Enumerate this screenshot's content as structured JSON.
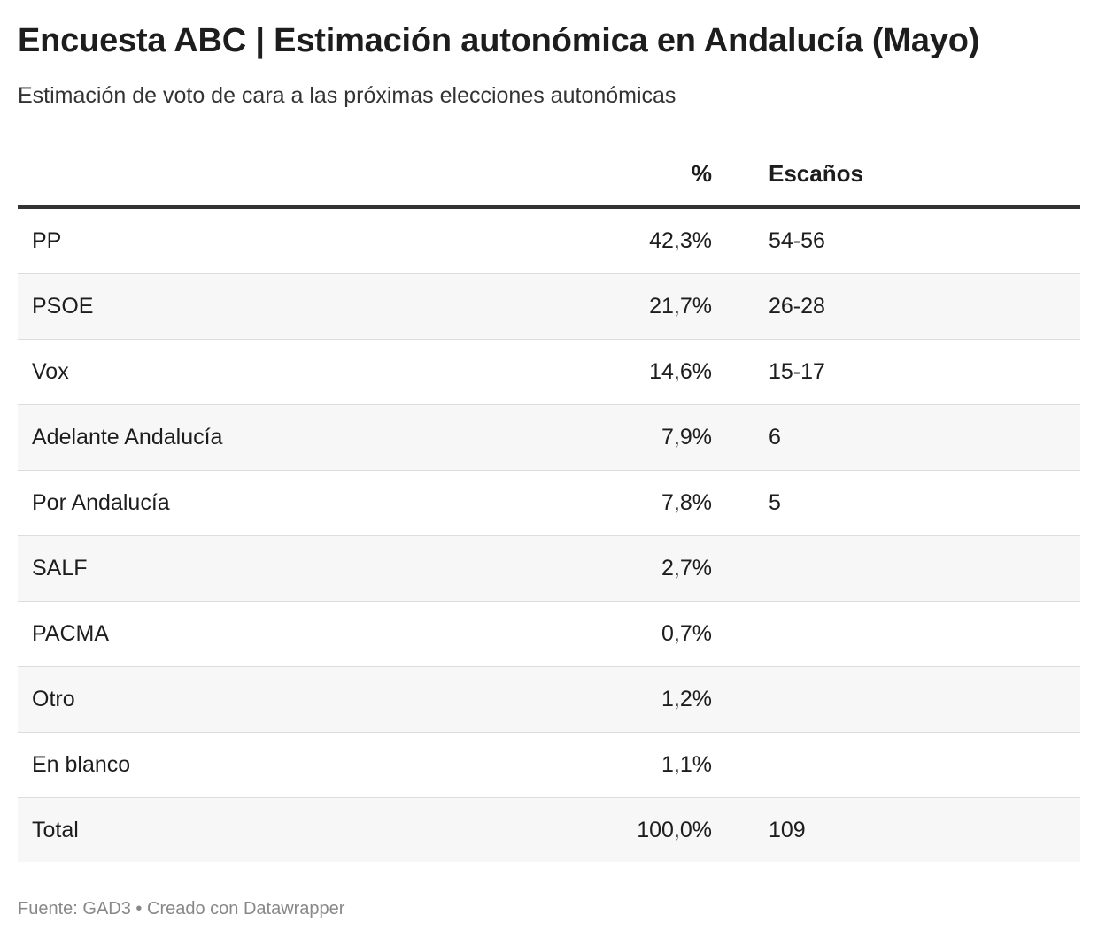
{
  "chart_data": {
    "type": "table",
    "title": "Encuesta ABC | Estimación autonómica en Andalucía (Mayo)",
    "subtitle": "Estimación de voto de cara a las próximas elecciones autonómicas",
    "columns": [
      "",
      "%",
      "Escaños"
    ],
    "rows": [
      {
        "party": "PP",
        "pct": "42,3%",
        "seats": "54-56"
      },
      {
        "party": "PSOE",
        "pct": "21,7%",
        "seats": "26-28"
      },
      {
        "party": "Vox",
        "pct": "14,6%",
        "seats": "15-17"
      },
      {
        "party": "Adelante Andalucía",
        "pct": "7,9%",
        "seats": "6"
      },
      {
        "party": "Por Andalucía",
        "pct": "7,8%",
        "seats": "5"
      },
      {
        "party": "SALF",
        "pct": "2,7%",
        "seats": ""
      },
      {
        "party": "PACMA",
        "pct": "0,7%",
        "seats": ""
      },
      {
        "party": "Otro",
        "pct": "1,2%",
        "seats": ""
      },
      {
        "party": "En blanco",
        "pct": "1,1%",
        "seats": ""
      },
      {
        "party": "Total",
        "pct": "100,0%",
        "seats": "109"
      }
    ],
    "footer": {
      "source_label": "Fuente:",
      "source": "GAD3",
      "separator": "•",
      "credit": "Creado con Datawrapper"
    }
  },
  "colors": {
    "text": "#1d1d1d",
    "header_rule": "#333333",
    "row_rule": "#dddddd",
    "stripe": "#f7f7f7",
    "footer_text": "#888888"
  }
}
